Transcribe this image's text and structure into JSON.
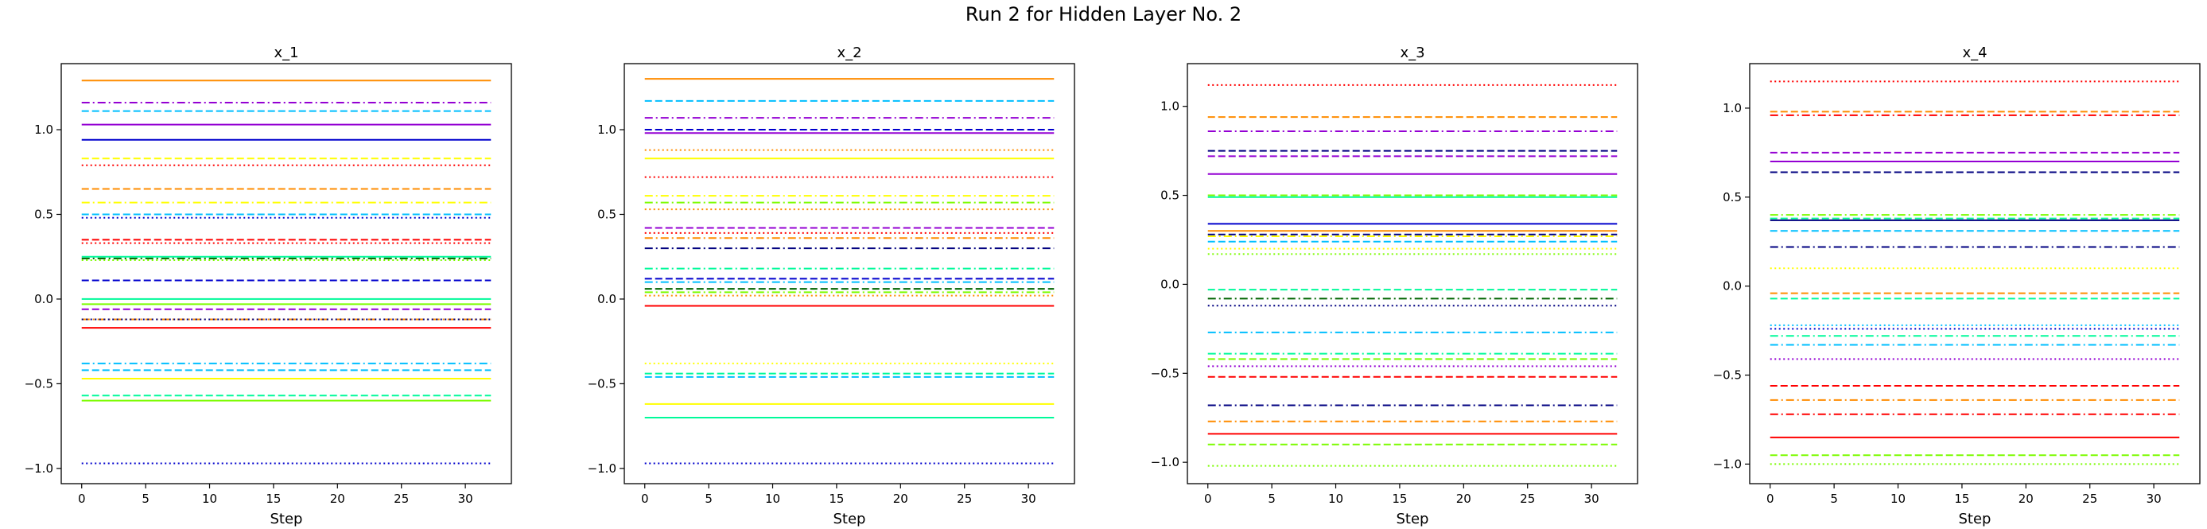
{
  "suptitle": "Run 2 for Hidden Layer No. 2",
  "chart_data": [
    {
      "type": "line",
      "title": "x_1",
      "xlabel": "Step",
      "ylabel": "",
      "xlim": [
        -1.6,
        33.6
      ],
      "ylim": [
        -1.09,
        1.39
      ],
      "xticks": [
        0,
        5,
        10,
        15,
        20,
        25,
        30
      ],
      "yticks": [
        -1.0,
        -0.5,
        0.0,
        0.5,
        1.0
      ],
      "x": [
        0,
        32
      ],
      "series": [
        {
          "value": 1.29,
          "color": "#ff8c00",
          "style": "solid"
        },
        {
          "value": 1.16,
          "color": "#9400d3",
          "style": "dashdot"
        },
        {
          "value": 1.11,
          "color": "#00bfff",
          "style": "dashed"
        },
        {
          "value": 1.03,
          "color": "#9400d3",
          "style": "solid"
        },
        {
          "value": 0.94,
          "color": "#0000cd",
          "style": "solid"
        },
        {
          "value": 0.83,
          "color": "#ffff00",
          "style": "dashed"
        },
        {
          "value": 0.79,
          "color": "#ff0000",
          "style": "dotted"
        },
        {
          "value": 0.65,
          "color": "#ff8c00",
          "style": "dashed"
        },
        {
          "value": 0.57,
          "color": "#ffff00",
          "style": "dashdot"
        },
        {
          "value": 0.5,
          "color": "#00bfff",
          "style": "dashed"
        },
        {
          "value": 0.48,
          "color": "#0000cd",
          "style": "dotted"
        },
        {
          "value": 0.35,
          "color": "#ff0000",
          "style": "dashed"
        },
        {
          "value": 0.33,
          "color": "#ff0000",
          "style": "dotted"
        },
        {
          "value": 0.25,
          "color": "#00fa9a",
          "style": "solid"
        },
        {
          "value": 0.24,
          "color": "#006400",
          "style": "dashdot"
        },
        {
          "value": 0.23,
          "color": "#7cfc00",
          "style": "dotted"
        },
        {
          "value": 0.11,
          "color": "#0000cd",
          "style": "dashed"
        },
        {
          "value": 0.0,
          "color": "#00fa9a",
          "style": "solid"
        },
        {
          "value": -0.03,
          "color": "#7cfc00",
          "style": "solid"
        },
        {
          "value": -0.06,
          "color": "#9400d3",
          "style": "dashed"
        },
        {
          "value": -0.12,
          "color": "#ff8c00",
          "style": "dashdot"
        },
        {
          "value": -0.12,
          "color": "#000080",
          "style": "dotted"
        },
        {
          "value": -0.17,
          "color": "#ff0000",
          "style": "solid"
        },
        {
          "value": -0.38,
          "color": "#00bfff",
          "style": "dashdot"
        },
        {
          "value": -0.42,
          "color": "#00bfff",
          "style": "dashed"
        },
        {
          "value": -0.47,
          "color": "#ffff00",
          "style": "solid"
        },
        {
          "value": -0.57,
          "color": "#00fa9a",
          "style": "dashed"
        },
        {
          "value": -0.6,
          "color": "#7cfc00",
          "style": "solid"
        },
        {
          "value": -0.97,
          "color": "#0000cd",
          "style": "dotted"
        }
      ]
    },
    {
      "type": "line",
      "title": "x_2",
      "xlabel": "Step",
      "ylabel": "",
      "xlim": [
        -1.6,
        33.6
      ],
      "ylim": [
        -1.09,
        1.39
      ],
      "xticks": [
        0,
        5,
        10,
        15,
        20,
        25,
        30
      ],
      "yticks": [
        -1.0,
        -0.5,
        0.0,
        0.5,
        1.0
      ],
      "x": [
        0,
        32
      ],
      "series": [
        {
          "value": 1.3,
          "color": "#ff8c00",
          "style": "solid"
        },
        {
          "value": 1.17,
          "color": "#00bfff",
          "style": "dashed"
        },
        {
          "value": 1.07,
          "color": "#9400d3",
          "style": "dashdot"
        },
        {
          "value": 1.0,
          "color": "#0000cd",
          "style": "dashed"
        },
        {
          "value": 0.98,
          "color": "#9400d3",
          "style": "solid"
        },
        {
          "value": 0.88,
          "color": "#ff8c00",
          "style": "dotted"
        },
        {
          "value": 0.83,
          "color": "#ffff00",
          "style": "solid"
        },
        {
          "value": 0.72,
          "color": "#ff0000",
          "style": "dotted"
        },
        {
          "value": 0.61,
          "color": "#ffff00",
          "style": "dashdot"
        },
        {
          "value": 0.57,
          "color": "#7cfc00",
          "style": "dashdot"
        },
        {
          "value": 0.53,
          "color": "#ff8c00",
          "style": "dotted"
        },
        {
          "value": 0.42,
          "color": "#9400d3",
          "style": "dashed"
        },
        {
          "value": 0.39,
          "color": "#ff0000",
          "style": "dotted"
        },
        {
          "value": 0.36,
          "color": "#ff8c00",
          "style": "dashdot"
        },
        {
          "value": 0.3,
          "color": "#000080",
          "style": "dashdot"
        },
        {
          "value": 0.18,
          "color": "#00fa9a",
          "style": "dashdot"
        },
        {
          "value": 0.12,
          "color": "#0000cd",
          "style": "dashed"
        },
        {
          "value": 0.1,
          "color": "#00bfff",
          "style": "dashdot"
        },
        {
          "value": 0.06,
          "color": "#006400",
          "style": "dashed"
        },
        {
          "value": 0.04,
          "color": "#7cfc00",
          "style": "dashdot"
        },
        {
          "value": 0.02,
          "color": "#ff8c00",
          "style": "dotted"
        },
        {
          "value": -0.04,
          "color": "#ff0000",
          "style": "solid"
        },
        {
          "value": -0.38,
          "color": "#ffff00",
          "style": "dotted"
        },
        {
          "value": -0.44,
          "color": "#00fa9a",
          "style": "dashed"
        },
        {
          "value": -0.46,
          "color": "#00bfff",
          "style": "dashed"
        },
        {
          "value": -0.62,
          "color": "#ffff00",
          "style": "solid"
        },
        {
          "value": -0.7,
          "color": "#00fa9a",
          "style": "solid"
        },
        {
          "value": -0.97,
          "color": "#0000cd",
          "style": "dotted"
        }
      ]
    },
    {
      "type": "line",
      "title": "x_3",
      "xlabel": "Step",
      "ylabel": "",
      "xlim": [
        -1.6,
        33.6
      ],
      "ylim": [
        -1.12,
        1.24
      ],
      "xticks": [
        0,
        5,
        10,
        15,
        20,
        25,
        30
      ],
      "yticks": [
        -1.0,
        -0.5,
        0.0,
        0.5,
        1.0
      ],
      "x": [
        0,
        32
      ],
      "series": [
        {
          "value": 1.12,
          "color": "#ff0000",
          "style": "dotted"
        },
        {
          "value": 0.94,
          "color": "#ff8c00",
          "style": "dashed"
        },
        {
          "value": 0.86,
          "color": "#9400d3",
          "style": "dashdot"
        },
        {
          "value": 0.75,
          "color": "#000080",
          "style": "dashed"
        },
        {
          "value": 0.72,
          "color": "#9400d3",
          "style": "dashed"
        },
        {
          "value": 0.62,
          "color": "#9400d3",
          "style": "solid"
        },
        {
          "value": 0.5,
          "color": "#7cfc00",
          "style": "dashed"
        },
        {
          "value": 0.49,
          "color": "#00fa9a",
          "style": "solid"
        },
        {
          "value": 0.34,
          "color": "#0000cd",
          "style": "solid"
        },
        {
          "value": 0.3,
          "color": "#ff8c00",
          "style": "solid"
        },
        {
          "value": 0.28,
          "color": "#000080",
          "style": "dashed"
        },
        {
          "value": 0.27,
          "color": "#ffff00",
          "style": "dashdot"
        },
        {
          "value": 0.24,
          "color": "#00bfff",
          "style": "dashed"
        },
        {
          "value": 0.2,
          "color": "#ffff00",
          "style": "dotted"
        },
        {
          "value": 0.17,
          "color": "#7cfc00",
          "style": "dotted"
        },
        {
          "value": -0.03,
          "color": "#00fa9a",
          "style": "dashed"
        },
        {
          "value": -0.08,
          "color": "#006400",
          "style": "dashdot"
        },
        {
          "value": -0.12,
          "color": "#000080",
          "style": "dotted"
        },
        {
          "value": -0.27,
          "color": "#00bfff",
          "style": "dashdot"
        },
        {
          "value": -0.39,
          "color": "#00fa9a",
          "style": "dashdot"
        },
        {
          "value": -0.42,
          "color": "#7cfc00",
          "style": "dashed"
        },
        {
          "value": -0.46,
          "color": "#9400d3",
          "style": "dotted"
        },
        {
          "value": -0.52,
          "color": "#ff0000",
          "style": "dashed"
        },
        {
          "value": -0.68,
          "color": "#000080",
          "style": "dashdot"
        },
        {
          "value": -0.77,
          "color": "#ff8c00",
          "style": "dashdot"
        },
        {
          "value": -0.84,
          "color": "#ff0000",
          "style": "solid"
        },
        {
          "value": -0.9,
          "color": "#7cfc00",
          "style": "dashed"
        },
        {
          "value": -1.02,
          "color": "#7cfc00",
          "style": "dotted"
        }
      ]
    },
    {
      "type": "line",
      "title": "x_4",
      "xlabel": "Step",
      "ylabel": "",
      "xlim": [
        -1.6,
        33.6
      ],
      "ylim": [
        -1.11,
        1.25
      ],
      "xticks": [
        0,
        5,
        10,
        15,
        20,
        25,
        30
      ],
      "yticks": [
        -1.0,
        -0.5,
        0.0,
        0.5,
        1.0
      ],
      "x": [
        0,
        32
      ],
      "series": [
        {
          "value": 1.15,
          "color": "#ff0000",
          "style": "dotted"
        },
        {
          "value": 0.98,
          "color": "#ff8c00",
          "style": "dashed"
        },
        {
          "value": 0.96,
          "color": "#ff0000",
          "style": "dashdot"
        },
        {
          "value": 0.75,
          "color": "#9400d3",
          "style": "dashed"
        },
        {
          "value": 0.7,
          "color": "#9400d3",
          "style": "solid"
        },
        {
          "value": 0.64,
          "color": "#000080",
          "style": "dashed"
        },
        {
          "value": 0.4,
          "color": "#7cfc00",
          "style": "dashdot"
        },
        {
          "value": 0.38,
          "color": "#00fa9a",
          "style": "dashed"
        },
        {
          "value": 0.37,
          "color": "#000080",
          "style": "solid"
        },
        {
          "value": 0.31,
          "color": "#00bfff",
          "style": "dashed"
        },
        {
          "value": 0.22,
          "color": "#000080",
          "style": "dashdot"
        },
        {
          "value": 0.1,
          "color": "#ffff00",
          "style": "dotted"
        },
        {
          "value": -0.04,
          "color": "#ff8c00",
          "style": "dashed"
        },
        {
          "value": -0.07,
          "color": "#00fa9a",
          "style": "dashed"
        },
        {
          "value": -0.22,
          "color": "#00bfff",
          "style": "dotted"
        },
        {
          "value": -0.24,
          "color": "#0000cd",
          "style": "dotted"
        },
        {
          "value": -0.28,
          "color": "#00fa9a",
          "style": "dashdot"
        },
        {
          "value": -0.33,
          "color": "#00bfff",
          "style": "dashdot"
        },
        {
          "value": -0.41,
          "color": "#9400d3",
          "style": "dotted"
        },
        {
          "value": -0.56,
          "color": "#ff0000",
          "style": "dashed"
        },
        {
          "value": -0.64,
          "color": "#ff8c00",
          "style": "dashdot"
        },
        {
          "value": -0.72,
          "color": "#ff0000",
          "style": "dashdot"
        },
        {
          "value": -0.85,
          "color": "#ff0000",
          "style": "solid"
        },
        {
          "value": -0.95,
          "color": "#7cfc00",
          "style": "dashed"
        },
        {
          "value": -1.0,
          "color": "#7cfc00",
          "style": "dotted"
        }
      ]
    }
  ]
}
